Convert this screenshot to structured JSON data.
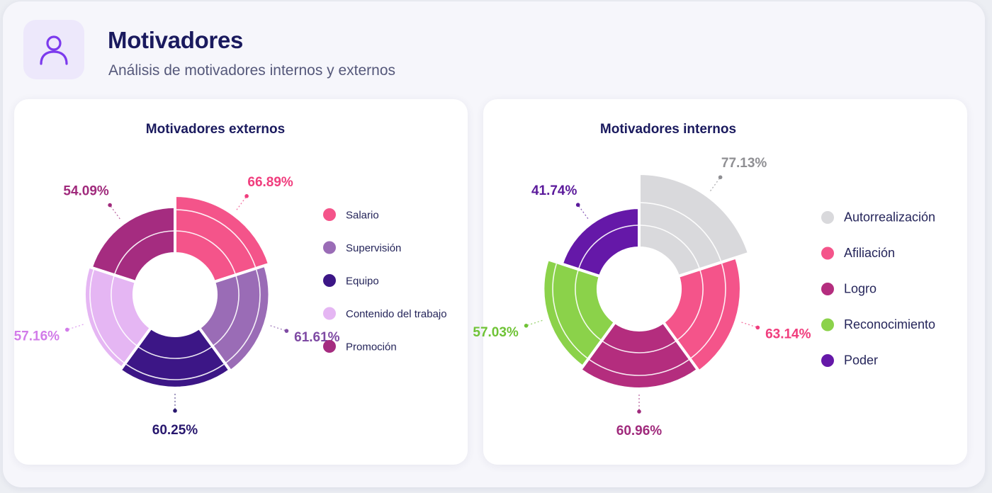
{
  "header": {
    "title": "Motivadores",
    "subtitle": "Análisis de motivadores internos y externos",
    "icon": "user-icon"
  },
  "colors": {
    "accent": "#7c3aed",
    "title": "#1a1a5e"
  },
  "chart_data": [
    {
      "type": "polar-area",
      "title": "Motivadores externos",
      "legend_position": "right",
      "categories": [
        "Salario",
        "Supervisión",
        "Equipo",
        "Contenido del trabajo",
        "Promoción"
      ],
      "values": [
        66.89,
        61.61,
        60.25,
        57.16,
        54.09
      ],
      "labels": [
        "66.89%",
        "61.61%",
        "60.25%",
        "57.16%",
        "54.09%"
      ],
      "colors": [
        "#f4548a",
        "#9a6cb6",
        "#3c1686",
        "#e5b6f3",
        "#a52c80"
      ],
      "label_colors": [
        "#f03d7d",
        "#7e4aa3",
        "#28176e",
        "#d27ce9",
        "#a02a7c"
      ]
    },
    {
      "type": "polar-area",
      "title": "Motivadores internos",
      "legend_position": "right",
      "categories": [
        "Autorrealización",
        "Afiliación",
        "Logro",
        "Reconocimiento",
        "Poder"
      ],
      "values": [
        77.13,
        63.14,
        60.96,
        57.03,
        41.74
      ],
      "labels": [
        "77.13%",
        "63.14%",
        "60.96%",
        "57.03%",
        "41.74%"
      ],
      "colors": [
        "#d9d9dc",
        "#f4548a",
        "#b42d7e",
        "#8bd24a",
        "#6518a8"
      ],
      "label_colors": [
        "#8f8f93",
        "#f03d7d",
        "#a02a7c",
        "#6fc336",
        "#5b1a9b"
      ]
    }
  ]
}
